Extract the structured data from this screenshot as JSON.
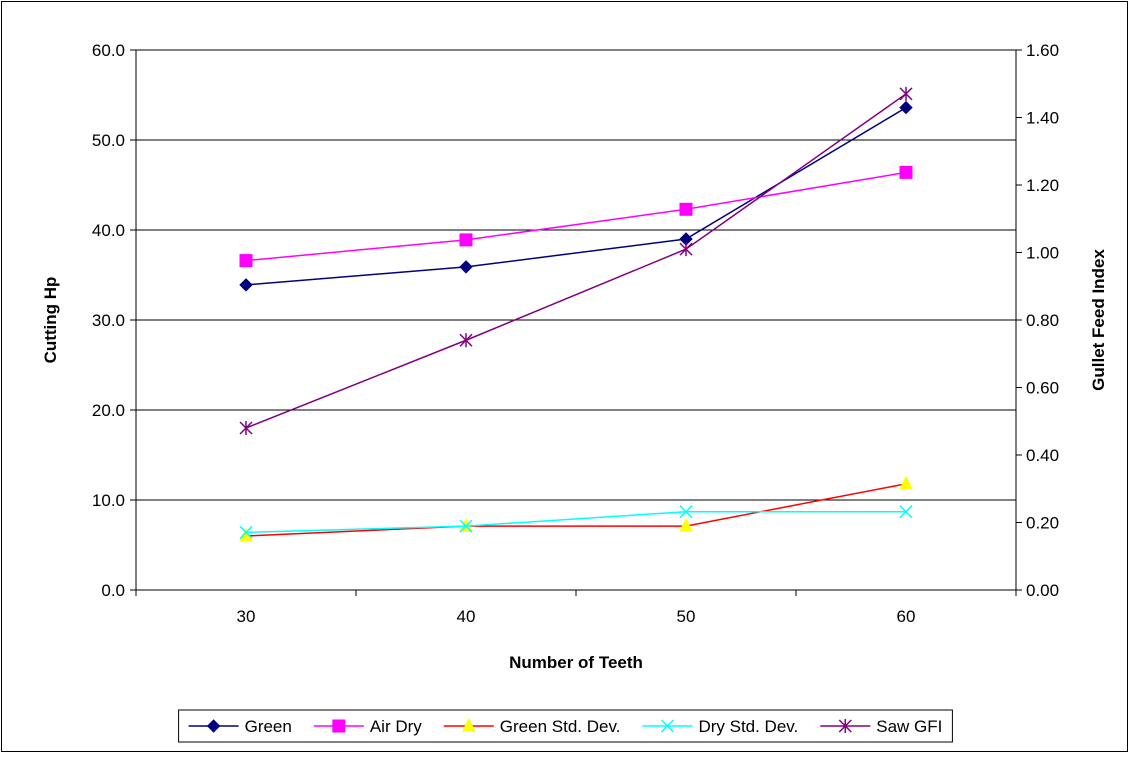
{
  "chart_data": {
    "type": "line",
    "xlabel": "Number of Teeth",
    "ylabel": "Cutting Hp",
    "y2label": "Gullet Feed Index",
    "categories": [
      30,
      40,
      50,
      60
    ],
    "x_tick_labels": [
      "30",
      "40",
      "50",
      "60"
    ],
    "ylim": [
      0,
      60
    ],
    "y_ticks": [
      0,
      10,
      20,
      30,
      40,
      50,
      60
    ],
    "y_tick_labels": [
      "0.0",
      "10.0",
      "20.0",
      "30.0",
      "40.0",
      "50.0",
      "60.0"
    ],
    "y2lim": [
      0,
      1.6
    ],
    "y2_ticks": [
      0,
      0.2,
      0.4,
      0.6,
      0.8,
      1.0,
      1.2,
      1.4,
      1.6
    ],
    "y2_tick_labels": [
      "0.00",
      "0.20",
      "0.40",
      "0.60",
      "0.80",
      "1.00",
      "1.20",
      "1.40",
      "1.60"
    ],
    "grid": "horizontal",
    "legend_position": "bottom",
    "series": [
      {
        "name": "Green",
        "axis": "left",
        "color": "#000080",
        "line_color": "#000080",
        "marker": "diamond",
        "values": [
          33.9,
          35.9,
          39.0,
          53.6
        ]
      },
      {
        "name": "Air Dry",
        "axis": "left",
        "color": "#FF00FF",
        "line_color": "#FF00FF",
        "marker": "square",
        "values": [
          36.6,
          38.9,
          42.3,
          46.4
        ]
      },
      {
        "name": "Green Std. Dev.",
        "axis": "left",
        "color": "#FFFF00",
        "line_color": "#FF0000",
        "marker": "triangle",
        "values": [
          6.0,
          7.1,
          7.1,
          11.8
        ]
      },
      {
        "name": "Dry Std. Dev.",
        "axis": "left",
        "color": "#00FFFF",
        "line_color": "#00FFFF",
        "marker": "x",
        "values": [
          6.4,
          7.1,
          8.7,
          8.7
        ]
      },
      {
        "name": "Saw GFI",
        "axis": "right",
        "color": "#800080",
        "line_color": "#800080",
        "marker": "star",
        "values": [
          0.48,
          0.74,
          1.01,
          1.47
        ]
      }
    ]
  }
}
